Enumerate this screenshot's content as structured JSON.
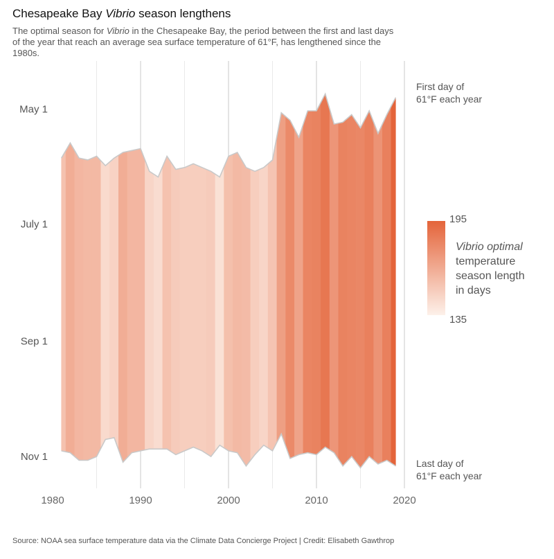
{
  "header": {
    "title_pre": "Chesapeake Bay ",
    "title_em": "Vibrio",
    "title_post": " season lengthens",
    "subtitle_pre": "The optimal season for ",
    "subtitle_em": "Vibrio",
    "subtitle_post": " in the Chesapeake Bay, the period between the first and last days of the year that reach an average sea surface temperature of 61°F, has lengthened since the 1980s."
  },
  "footer": {
    "source": "Source: NOAA sea surface temperature data via the Climate Data Concierge Project | Credit: Elisabeth Gawthrop"
  },
  "chart_data": {
    "type": "area",
    "title": "Chesapeake Bay Vibrio season lengthens",
    "xlabel": "",
    "ylabel": "",
    "xlim": [
      1980,
      2020
    ],
    "ylim_day_of_year": [
      100,
      320
    ],
    "x_ticks": [
      1980,
      1990,
      2000,
      2010,
      2020
    ],
    "y_ticks": [
      {
        "label": "May 1",
        "day": 121
      },
      {
        "label": "July 1",
        "day": 182
      },
      {
        "label": "Sep 1",
        "day": 244
      },
      {
        "label": "Nov 1",
        "day": 305
      }
    ],
    "annotations": {
      "first_line1": "First day of",
      "first_line2": "61°F each year",
      "last_line1": "Last day of",
      "last_line2": "61°F each year"
    },
    "legend": {
      "max_label": "195",
      "min_label": "135",
      "title_em": "Vibrio optimal",
      "title_line2": "temperature",
      "title_line3": "season length",
      "title_line4": "in days",
      "color_min": "#fdf1ea",
      "color_max": "#e4643a",
      "value_min": 135,
      "value_max": 195
    },
    "series": [
      {
        "name": "First day of 61°F",
        "values": [
          147,
          139,
          147,
          148,
          146,
          151,
          147,
          144,
          143,
          142,
          154,
          157,
          146,
          153,
          152,
          150,
          152,
          154,
          157,
          146,
          144,
          152,
          154,
          152,
          148,
          123,
          127,
          136,
          122,
          122,
          113,
          129,
          128,
          124,
          131,
          122,
          134,
          124,
          115
        ]
      },
      {
        "name": "Last day of 61°F",
        "values": [
          302,
          303,
          307,
          307,
          305,
          296,
          295,
          308,
          303,
          302,
          301,
          301,
          301,
          304,
          302,
          300,
          302,
          305,
          299,
          302,
          303,
          310,
          304,
          299,
          302,
          293,
          306,
          304,
          303,
          304,
          300,
          303,
          310,
          305,
          311,
          305,
          309,
          307,
          310
        ]
      }
    ],
    "x": [
      1981,
      1982,
      1983,
      1984,
      1985,
      1986,
      1987,
      1988,
      1989,
      1990,
      1991,
      1992,
      1993,
      1994,
      1995,
      1996,
      1997,
      1998,
      1999,
      2000,
      2001,
      2002,
      2003,
      2004,
      2005,
      2006,
      2007,
      2008,
      2009,
      2010,
      2011,
      2012,
      2013,
      2014,
      2015,
      2016,
      2017,
      2018,
      2019
    ]
  }
}
